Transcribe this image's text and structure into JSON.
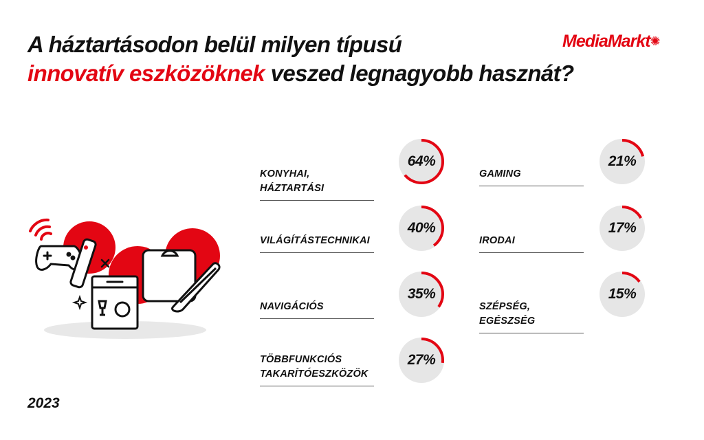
{
  "title": {
    "line1": "A háztartásodon belül milyen típusú",
    "highlight": "innovatív eszközöknek",
    "line2_rest": " veszed legnagyobb hasznát?"
  },
  "logo": {
    "text": "MediaMarkt"
  },
  "year": "2023",
  "colors": {
    "accent": "#e30613",
    "ring_bg": "#e6e6e6",
    "text": "#111111"
  },
  "illustration": {
    "icons": [
      "wifi-icon",
      "gamepad-icon",
      "remote-icon",
      "sparkle-icon",
      "dishwasher-icon",
      "scale-icon",
      "hair-straightener-icon"
    ]
  },
  "chart_data": {
    "type": "pie",
    "unit": "%",
    "items": [
      {
        "label": "KONYHAI, HÁZTARTÁSI",
        "value": 64,
        "display": "64%"
      },
      {
        "label": "VILÁGÍTÁSTECHNIKAI",
        "value": 40,
        "display": "40%"
      },
      {
        "label": "NAVIGÁCIÓS",
        "value": 35,
        "display": "35%"
      },
      {
        "label": "TÖBBFUNKCIÓS TAKARÍTÓESZKÖZÖK",
        "label_lines": [
          "TÖBBFUNKCIÓS",
          "TAKARÍTÓESZKÖZÖK"
        ],
        "value": 27,
        "display": "27%"
      },
      {
        "label": "GAMING",
        "value": 21,
        "display": "21%"
      },
      {
        "label": "IRODAI",
        "value": 17,
        "display": "17%"
      },
      {
        "label": "SZÉPSÉG, EGÉSZSÉG",
        "value": 15,
        "display": "15%"
      }
    ]
  }
}
